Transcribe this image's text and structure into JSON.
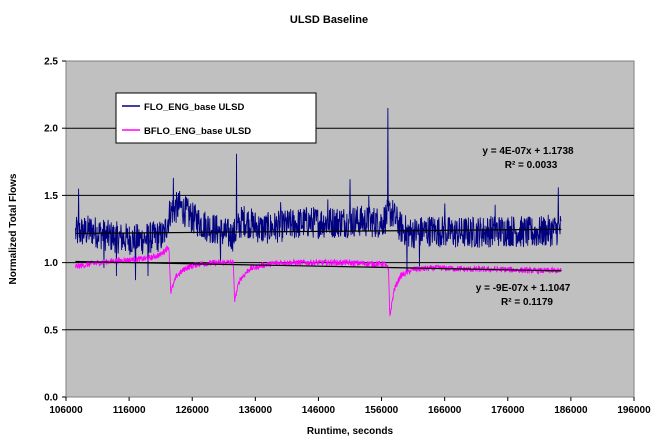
{
  "chart_data": {
    "type": "line",
    "title": "ULSD Baseline",
    "xlabel": "Runtime, seconds",
    "ylabel": "Normalized Total Flows",
    "xlim": [
      106000,
      196000
    ],
    "ylim": [
      0,
      2.5
    ],
    "x_ticks": [
      "106000",
      "116000",
      "126000",
      "136000",
      "146000",
      "156000",
      "166000",
      "176000",
      "186000",
      "196000"
    ],
    "y_ticks": [
      "0.0",
      "0.5",
      "1.0",
      "1.5",
      "2.0",
      "2.5"
    ],
    "x_tick_values": [
      106000,
      116000,
      126000,
      136000,
      146000,
      156000,
      166000,
      176000,
      186000,
      196000
    ],
    "y_tick_values": [
      0,
      0.5,
      1.0,
      1.5,
      2.0,
      2.5
    ],
    "grid": "horizontal",
    "background": "#c0c0c0",
    "legend_position": "top-left",
    "x_range": [
      107500,
      184500
    ],
    "series": [
      {
        "name": "FLO_ENG_base ULSD",
        "color": "#000080",
        "trendline": {
          "slope": 4e-07,
          "intercept": 1.1738
        },
        "base": [
          [
            107500,
            1.22
          ],
          [
            110000,
            1.24
          ],
          [
            112500,
            1.2
          ],
          [
            115000,
            1.18
          ],
          [
            117500,
            1.17
          ],
          [
            120000,
            1.19
          ],
          [
            121500,
            1.2
          ],
          [
            122500,
            1.38
          ],
          [
            124000,
            1.42
          ],
          [
            126000,
            1.33
          ],
          [
            128000,
            1.28
          ],
          [
            131000,
            1.22
          ],
          [
            132500,
            1.2
          ],
          [
            134000,
            1.32
          ],
          [
            137000,
            1.25
          ],
          [
            140000,
            1.27
          ],
          [
            144000,
            1.3
          ],
          [
            148000,
            1.3
          ],
          [
            152000,
            1.31
          ],
          [
            156000,
            1.3
          ],
          [
            157500,
            1.38
          ],
          [
            159000,
            1.26
          ],
          [
            160500,
            1.22
          ],
          [
            164000,
            1.24
          ],
          [
            168000,
            1.22
          ],
          [
            172000,
            1.23
          ],
          [
            176000,
            1.24
          ],
          [
            180000,
            1.22
          ],
          [
            184500,
            1.25
          ]
        ],
        "noise": 0.12,
        "spikes": [
          [
            108000,
            1.55
          ],
          [
            112000,
            0.96
          ],
          [
            114000,
            0.9
          ],
          [
            117000,
            0.87
          ],
          [
            119000,
            0.9
          ],
          [
            123000,
            1.63
          ],
          [
            130500,
            1.0
          ],
          [
            133000,
            1.81
          ],
          [
            140000,
            1.45
          ],
          [
            147500,
            1.47
          ],
          [
            151000,
            1.62
          ],
          [
            154000,
            1.5
          ],
          [
            157000,
            2.15
          ],
          [
            160000,
            0.92
          ],
          [
            162000,
            0.97
          ],
          [
            166000,
            1.44
          ],
          [
            174000,
            1.43
          ],
          [
            184000,
            1.56
          ]
        ]
      },
      {
        "name": "BFLO_ENG_base ULSD",
        "color": "#ff00ff",
        "trendline": {
          "slope": -9e-07,
          "intercept": 1.1047
        },
        "base": [
          [
            107500,
            0.97
          ],
          [
            110000,
            0.99
          ],
          [
            113000,
            1.01
          ],
          [
            116000,
            1.02
          ],
          [
            119000,
            1.03
          ],
          [
            121000,
            1.06
          ],
          [
            122300,
            1.12
          ],
          [
            122600,
            0.78
          ],
          [
            123500,
            0.9
          ],
          [
            125000,
            0.96
          ],
          [
            127000,
            0.99
          ],
          [
            130000,
            1.0
          ],
          [
            132500,
            1.0
          ],
          [
            132700,
            0.72
          ],
          [
            133500,
            0.87
          ],
          [
            135000,
            0.95
          ],
          [
            137000,
            0.98
          ],
          [
            140000,
            1.0
          ],
          [
            145000,
            1.0
          ],
          [
            150000,
            1.0
          ],
          [
            155000,
            0.99
          ],
          [
            156500,
            0.99
          ],
          [
            157100,
            0.95
          ],
          [
            157300,
            0.6
          ],
          [
            158000,
            0.8
          ],
          [
            159000,
            0.9
          ],
          [
            161000,
            0.95
          ],
          [
            165000,
            0.96
          ],
          [
            170000,
            0.95
          ],
          [
            175000,
            0.95
          ],
          [
            180000,
            0.94
          ],
          [
            184500,
            0.94
          ]
        ],
        "noise": 0.022,
        "spikes": []
      }
    ],
    "annotations": [
      {
        "text": "y = 4E-07x + 1.1738",
        "series": 0
      },
      {
        "text": "R² = 0.0033",
        "series": 0
      },
      {
        "text": "y = -9E-07x + 1.1047",
        "series": 1
      },
      {
        "text": "R² = 0.1179",
        "series": 1
      }
    ]
  }
}
